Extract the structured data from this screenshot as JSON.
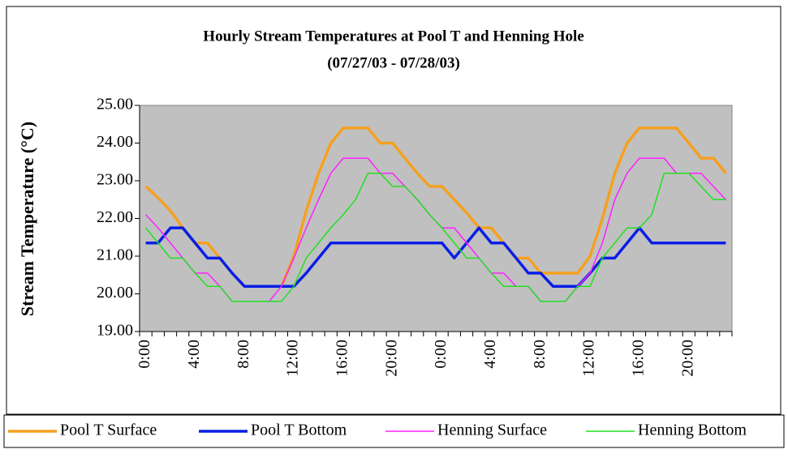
{
  "chart_data": {
    "type": "line",
    "title": "Hourly Stream Temperatures at Pool T and Henning Hole",
    "subtitle": "(07/27/03 - 07/28/03)",
    "y_label": "Stream Temperature (°C)",
    "categories": [
      "0:00",
      null,
      null,
      null,
      "4:00",
      null,
      null,
      null,
      "8:00",
      null,
      null,
      null,
      "12:00",
      null,
      null,
      null,
      "16:00",
      null,
      null,
      null,
      "20:00",
      null,
      null,
      null,
      "0:00",
      null,
      null,
      null,
      "4:00",
      null,
      null,
      null,
      "8:00",
      null,
      null,
      null,
      "12:00",
      null,
      null,
      null,
      "16:00",
      null,
      null,
      null,
      "20:00",
      null,
      null,
      null
    ],
    "ylim": [
      19,
      25
    ],
    "yticks": [
      {
        "value": 19,
        "label": "19.00"
      },
      {
        "value": 20,
        "label": "20.00"
      },
      {
        "value": 21,
        "label": "21.00"
      },
      {
        "value": 22,
        "label": "22.00"
      },
      {
        "value": 23,
        "label": "23.00"
      },
      {
        "value": 24,
        "label": "24.00"
      },
      {
        "value": 25,
        "label": "25.00"
      }
    ],
    "legend": "bottom",
    "series": [
      {
        "name": "Pool T Surface",
        "color": "#f5a020",
        "width": 3.5,
        "values": [
          22.85,
          22.55,
          22.2,
          21.75,
          21.35,
          21.35,
          20.95,
          20.55,
          20.2,
          20.2,
          20.2,
          20.2,
          21.0,
          22.2,
          23.2,
          24.0,
          24.4,
          24.4,
          24.4,
          24.0,
          24.0,
          23.6,
          23.2,
          22.85,
          22.85,
          22.5,
          22.15,
          21.75,
          21.75,
          21.35,
          20.95,
          20.95,
          20.55,
          20.55,
          20.55,
          20.55,
          21.0,
          22.0,
          23.2,
          24.0,
          24.4,
          24.4,
          24.4,
          24.4,
          24.0,
          23.6,
          23.6,
          23.2
        ]
      },
      {
        "name": "Pool T Bottom",
        "color": "#0a1ee6",
        "width": 3.5,
        "values": [
          21.35,
          21.35,
          21.75,
          21.75,
          21.35,
          20.95,
          20.95,
          20.55,
          20.2,
          20.2,
          20.2,
          20.2,
          20.2,
          20.55,
          20.95,
          21.35,
          21.35,
          21.35,
          21.35,
          21.35,
          21.35,
          21.35,
          21.35,
          21.35,
          21.35,
          20.95,
          21.35,
          21.75,
          21.35,
          21.35,
          20.95,
          20.55,
          20.55,
          20.2,
          20.2,
          20.2,
          20.55,
          20.95,
          20.95,
          21.35,
          21.75,
          21.35,
          21.35,
          21.35,
          21.35,
          21.35,
          21.35,
          21.35
        ]
      },
      {
        "name": "Henning Surface",
        "color": "#ff20ff",
        "width": 1.5,
        "values": [
          22.1,
          21.75,
          21.35,
          20.95,
          20.55,
          20.55,
          20.2,
          19.8,
          19.8,
          19.8,
          19.8,
          20.2,
          20.95,
          21.75,
          22.5,
          23.2,
          23.6,
          23.6,
          23.6,
          23.2,
          23.2,
          22.85,
          22.5,
          22.1,
          21.75,
          21.75,
          21.35,
          20.95,
          20.55,
          20.55,
          20.2,
          20.2,
          19.8,
          19.8,
          19.8,
          20.2,
          20.55,
          21.35,
          22.5,
          23.2,
          23.6,
          23.6,
          23.6,
          23.2,
          23.2,
          23.2,
          22.85,
          22.5
        ]
      },
      {
        "name": "Henning Bottom",
        "color": "#20e020",
        "width": 1.5,
        "values": [
          21.75,
          21.35,
          20.95,
          20.95,
          20.55,
          20.2,
          20.2,
          19.8,
          19.8,
          19.8,
          19.8,
          19.8,
          20.2,
          20.95,
          21.35,
          21.75,
          22.1,
          22.5,
          23.2,
          23.2,
          22.85,
          22.85,
          22.5,
          22.1,
          21.75,
          21.35,
          20.95,
          20.95,
          20.55,
          20.2,
          20.2,
          20.2,
          19.8,
          19.8,
          19.8,
          20.2,
          20.2,
          20.95,
          21.35,
          21.75,
          21.75,
          22.1,
          23.2,
          23.2,
          23.2,
          22.85,
          22.5,
          22.5
        ]
      }
    ]
  }
}
